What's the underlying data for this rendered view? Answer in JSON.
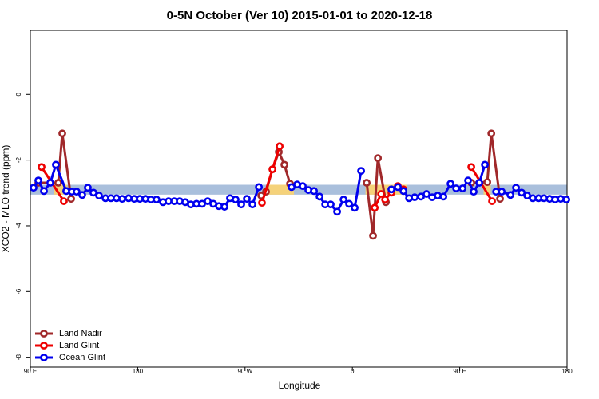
{
  "chart_data": {
    "type": "line",
    "title": "0-5N October (Ver 10)   2015-01-01 to 2020-12-18",
    "x_label": "Longitude",
    "y_label": "XCO2 - MLO trend (ppm)",
    "xlim": [
      90,
      540
    ],
    "xticks": [
      {
        "value": 90,
        "label": "90 E"
      },
      180,
      {
        "value": 270,
        "label": "90 W"
      },
      {
        "value": 360,
        "label": "0"
      },
      {
        "value": 450,
        "label": "90 E"
      },
      {
        "value": 540,
        "label": "180"
      }
    ],
    "ylim": [
      -8.3,
      1.95
    ],
    "yticks": [
      0,
      -2,
      -4,
      -6,
      -8
    ],
    "band": {
      "ylim": [
        -3.05,
        -2.75
      ],
      "color": "#a9bfdc"
    },
    "land_spans": {
      "color": "#f5d27a",
      "ranges": [
        [
          110,
          121
        ],
        [
          289,
          311
        ],
        [
          371,
          406
        ],
        [
          470,
          476
        ]
      ]
    },
    "legend": "bottom-left",
    "series": [
      {
        "name": "Land Nadir",
        "color": "#a0282a",
        "x": [
          96.7,
          113.4,
          116.8,
          124.2,
          200,
          283.6,
          287.6,
          293,
          298.3,
          303,
          307.7,
          340,
          372,
          377.3,
          381.4,
          388.1,
          420,
          459.7,
          473.1,
          476.5,
          483.8
        ],
        "values": [
          -2.69,
          -2.69,
          -1.19,
          -3.18,
          null,
          -3.08,
          -2.96,
          -2.28,
          -1.75,
          -2.14,
          -2.72,
          null,
          -2.69,
          -4.3,
          -1.94,
          -3.28,
          null,
          -2.69,
          -2.67,
          -1.19,
          -3.18
        ]
      },
      {
        "name": "Land Glint",
        "color": "#ee0000",
        "x": [
          99.4,
          118.1,
          200,
          284.2,
          293,
          299,
          340,
          378.7,
          384.1,
          387.4,
          392.7,
          398.1,
          402.8,
          420,
          459.7,
          477.1
        ],
        "values": [
          -2.21,
          -3.25,
          null,
          -3.3,
          -2.28,
          -1.58,
          null,
          -3.45,
          -3.03,
          -3.2,
          -2.99,
          -2.79,
          -2.89,
          null,
          -2.21,
          -3.25
        ]
      },
      {
        "name": "Ocean Glint",
        "color": "#0000ee",
        "x": [
          92.7,
          96.7,
          101.4,
          106.7,
          111.4,
          120.1,
          124.8,
          128.8,
          133.5,
          138.2,
          142.9,
          147.6,
          153,
          157.6,
          162.3,
          167,
          172.4,
          177.1,
          181.8,
          186.5,
          191.1,
          195.8,
          201.2,
          205.9,
          210.6,
          215.3,
          219.9,
          224.6,
          229.3,
          234,
          238.7,
          243.4,
          248.1,
          252.8,
          257.4,
          262.1,
          266.8,
          271.5,
          276.2,
          281.6,
          295,
          309,
          313.7,
          318.4,
          323.1,
          327.8,
          332.5,
          337.2,
          341.8,
          347.2,
          352.6,
          357.2,
          361.9,
          367.3,
          380,
          392.7,
          398.1,
          402.8,
          407.5,
          412.2,
          417.5,
          422.2,
          426.9,
          431.6,
          436.3,
          442.3,
          447,
          452.4,
          457,
          461.7,
          466.4,
          471.1,
          476,
          480.5,
          485.2,
          492.5,
          497.2,
          501.9,
          506.6,
          511.3,
          516,
          520.7,
          525.4,
          530,
          534.7,
          539.4
        ],
        "values": [
          -2.84,
          -2.62,
          -2.94,
          -2.69,
          -2.14,
          -2.94,
          -2.96,
          -2.96,
          -3.06,
          -2.84,
          -2.99,
          -3.08,
          -3.16,
          -3.16,
          -3.16,
          -3.18,
          -3.16,
          -3.18,
          -3.18,
          -3.18,
          -3.2,
          -3.2,
          -3.28,
          -3.25,
          -3.25,
          -3.25,
          -3.28,
          -3.35,
          -3.33,
          -3.33,
          -3.25,
          -3.33,
          -3.4,
          -3.42,
          -3.16,
          -3.2,
          -3.35,
          -3.18,
          -3.35,
          -2.82,
          null,
          -2.82,
          -2.74,
          -2.79,
          -2.91,
          -2.94,
          -3.11,
          -3.35,
          -3.35,
          -3.57,
          -3.2,
          -3.33,
          -3.45,
          -2.33,
          null,
          -2.89,
          -2.82,
          -2.94,
          -3.16,
          -3.13,
          -3.11,
          -3.03,
          -3.13,
          -3.08,
          -3.11,
          -2.72,
          -2.86,
          -2.86,
          -2.62,
          -2.96,
          -2.69,
          -2.14,
          null,
          -2.96,
          -2.96,
          -3.06,
          -2.84,
          -2.99,
          -3.08,
          -3.16,
          -3.16,
          -3.16,
          -3.18,
          -3.2,
          -3.18,
          -3.2
        ]
      }
    ]
  }
}
